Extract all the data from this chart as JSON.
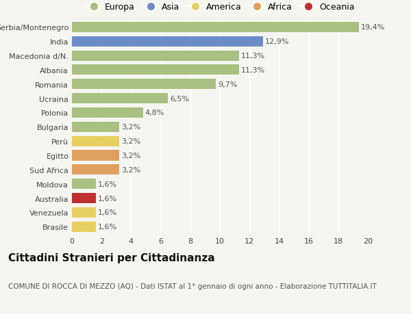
{
  "categories": [
    "Serbia/Montenegro",
    "India",
    "Macedonia d/N.",
    "Albania",
    "Romania",
    "Ucraina",
    "Polonia",
    "Bulgaria",
    "Perù",
    "Egitto",
    "Sud Africa",
    "Moldova",
    "Australia",
    "Venezuela",
    "Brasile"
  ],
  "values": [
    19.4,
    12.9,
    11.3,
    11.3,
    9.7,
    6.5,
    4.8,
    3.2,
    3.2,
    3.2,
    3.2,
    1.6,
    1.6,
    1.6,
    1.6
  ],
  "continents": [
    "Europa",
    "Asia",
    "Europa",
    "Europa",
    "Europa",
    "Europa",
    "Europa",
    "Europa",
    "America",
    "Africa",
    "Africa",
    "Europa",
    "Oceania",
    "America",
    "America"
  ],
  "continent_colors": {
    "Europa": "#a8c080",
    "Asia": "#6b8cc7",
    "America": "#e8d060",
    "Africa": "#e0a060",
    "Oceania": "#c03030"
  },
  "legend_order": [
    "Europa",
    "Asia",
    "America",
    "Africa",
    "Oceania"
  ],
  "xlabel": "",
  "title": "Cittadini Stranieri per Cittadinanza",
  "subtitle": "COMUNE DI ROCCA DI MEZZO (AQ) - Dati ISTAT al 1° gennaio di ogni anno - Elaborazione TUTTITALIA.IT",
  "xlim": [
    0,
    20
  ],
  "xticks": [
    0,
    2,
    4,
    6,
    8,
    10,
    12,
    14,
    16,
    18,
    20
  ],
  "background_color": "#f5f5f0",
  "bar_height": 0.72,
  "title_fontsize": 11,
  "subtitle_fontsize": 7.5,
  "label_fontsize": 8,
  "tick_fontsize": 8,
  "legend_fontsize": 9
}
